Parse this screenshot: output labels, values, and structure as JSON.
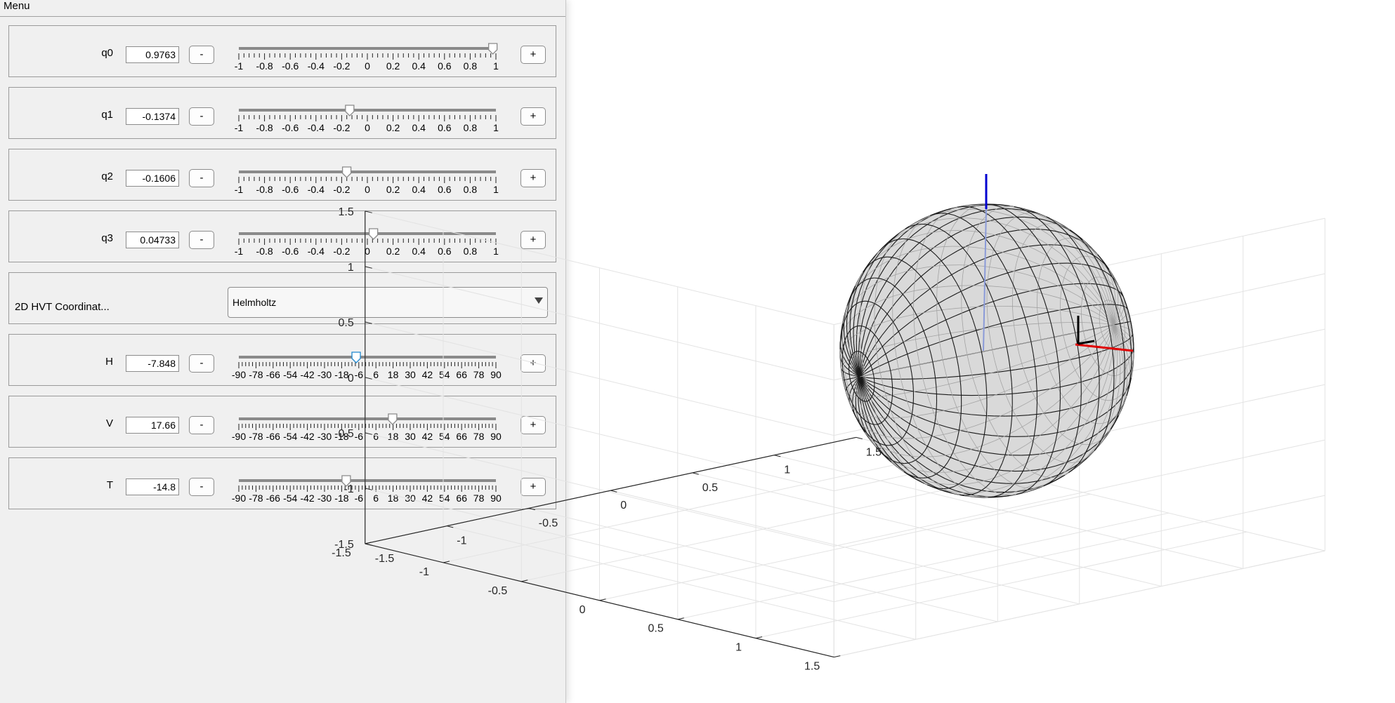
{
  "menu": {
    "title": "Menu"
  },
  "rows": [
    {
      "label": "q0",
      "value": "0.9763",
      "min": -1,
      "max": 1,
      "slider": 0.9763,
      "ticks": [
        "-1",
        "-0.8",
        "-0.6",
        "-0.4",
        "-0.2",
        "0",
        "0.2",
        "0.4",
        "0.6",
        "0.8",
        "1"
      ],
      "minus": "-",
      "plus": "+"
    },
    {
      "label": "q1",
      "value": "-0.1374",
      "min": -1,
      "max": 1,
      "slider": -0.1374,
      "ticks": [
        "-1",
        "-0.8",
        "-0.6",
        "-0.4",
        "-0.2",
        "0",
        "0.2",
        "0.4",
        "0.6",
        "0.8",
        "1"
      ],
      "minus": "-",
      "plus": "+"
    },
    {
      "label": "q2",
      "value": "-0.1606",
      "min": -1,
      "max": 1,
      "slider": -0.1606,
      "ticks": [
        "-1",
        "-0.8",
        "-0.6",
        "-0.4",
        "-0.2",
        "0",
        "0.2",
        "0.4",
        "0.6",
        "0.8",
        "1"
      ],
      "minus": "-",
      "plus": "+"
    },
    {
      "label": "q3",
      "value": "0.04733",
      "min": -1,
      "max": 1,
      "slider": 0.04733,
      "ticks": [
        "-1",
        "-0.8",
        "-0.6",
        "-0.4",
        "-0.2",
        "0",
        "0.2",
        "0.4",
        "0.6",
        "0.8",
        "1"
      ],
      "minus": "-",
      "plus": "+"
    }
  ],
  "coord_system": {
    "label": "2D HVT Coordinat...",
    "selected": "Helmholtz"
  },
  "angle_rows": [
    {
      "label": "H",
      "value": "-7.848",
      "min": -90,
      "max": 90,
      "slider": -7.848,
      "active": true,
      "ticks": [
        "-90",
        "-78",
        "-66",
        "-54",
        "-42",
        "-30",
        "-18",
        "-6",
        "6",
        "18",
        "30",
        "42",
        "54",
        "66",
        "78",
        "90"
      ],
      "minus": "-",
      "plus": "+"
    },
    {
      "label": "V",
      "value": "17.66",
      "min": -90,
      "max": 90,
      "slider": 17.66,
      "active": false,
      "ticks": [
        "-90",
        "-78",
        "-66",
        "-54",
        "-42",
        "-30",
        "-18",
        "-6",
        "6",
        "18",
        "30",
        "42",
        "54",
        "66",
        "78",
        "90"
      ],
      "minus": "-",
      "plus": "+"
    },
    {
      "label": "T",
      "value": "-14.8",
      "min": -90,
      "max": 90,
      "slider": -14.8,
      "active": false,
      "ticks": [
        "-90",
        "-78",
        "-66",
        "-54",
        "-42",
        "-30",
        "-18",
        "-6",
        "6",
        "18",
        "30",
        "42",
        "54",
        "66",
        "78",
        "90"
      ],
      "minus": "-",
      "plus": "+"
    }
  ],
  "plot": {
    "z_ticks": [
      "1.5",
      "1",
      "0.5",
      "0",
      "-0.5",
      "-1",
      "-1.5"
    ],
    "y_ticks": [
      "-1.5",
      "-1",
      "-0.5",
      "0",
      "0.5",
      "1",
      "1.5"
    ],
    "x_ticks": [
      "-1.5",
      "-1",
      "-0.5",
      "0",
      "0.5",
      "1",
      "1.5"
    ],
    "sphere_fill": "#d9d9d9",
    "axis_colors": {
      "x": "#e00000",
      "y": "#000000",
      "z": "#0000d0"
    }
  }
}
